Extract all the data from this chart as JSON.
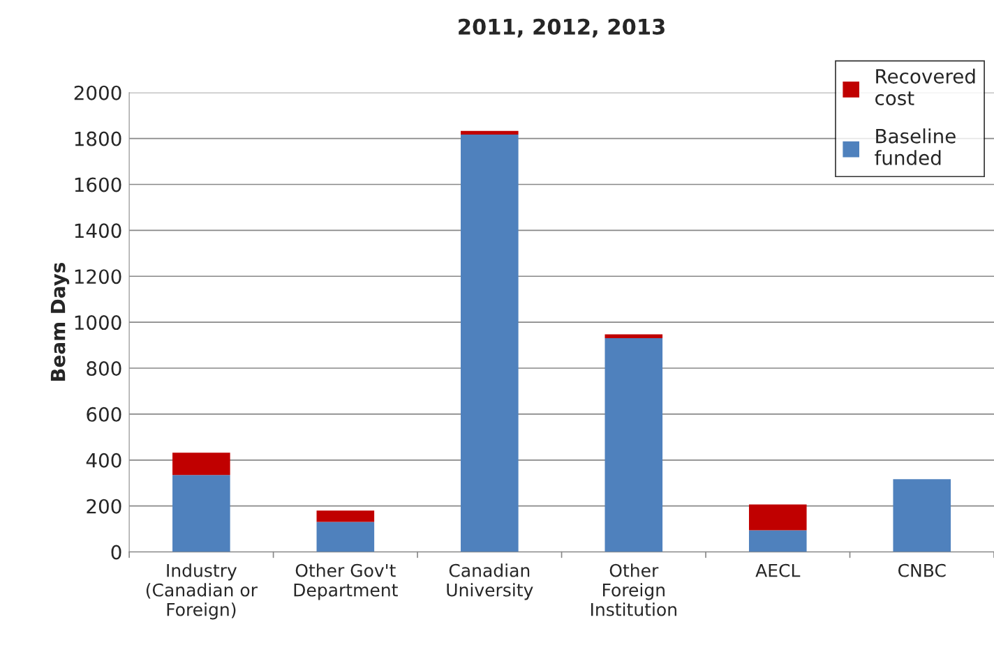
{
  "chart_data": {
    "type": "bar",
    "title": "2011, 2012, 2013",
    "ylabel": "Beam Days",
    "categories": [
      "Industry\n(Canadian or\nForeign)",
      "Other Gov't\nDepartment",
      "Canadian\nUniversity",
      "Other\nForeign\nInstitution",
      "AECL",
      "CNBC"
    ],
    "series": [
      {
        "name": "Baseline\nfunded",
        "color": "#4f81bd",
        "values": [
          335,
          131,
          1817,
          931,
          94,
          317
        ]
      },
      {
        "name": "Recovered\ncost",
        "color": "#c00000",
        "values": [
          97,
          49,
          16,
          16,
          113,
          0
        ]
      }
    ],
    "stacked": true,
    "ylim": [
      0,
      2000
    ],
    "yticks": [
      0,
      200,
      400,
      600,
      800,
      1000,
      1200,
      1400,
      1600,
      1800,
      2000
    ],
    "grid": "y",
    "legend": "top right"
  }
}
